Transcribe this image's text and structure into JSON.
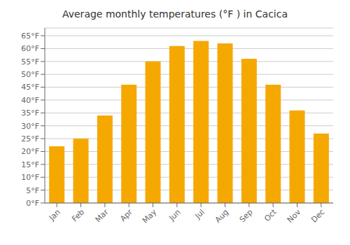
{
  "chart_data": {
    "type": "bar",
    "title": "Average monthly temperatures (°F ) in Cacica",
    "categories": [
      "Jan",
      "Feb",
      "Mar",
      "Apr",
      "May",
      "Jun",
      "Jul",
      "Aug",
      "Sep",
      "Oct",
      "Nov",
      "Dec"
    ],
    "values": [
      22,
      25,
      34,
      46,
      55,
      61,
      63,
      62,
      56,
      46,
      36,
      27
    ],
    "color": "#F5A800",
    "ylim": [
      0,
      68
    ],
    "yticks": [
      {
        "value": 0,
        "label": "0°F"
      },
      {
        "value": 5,
        "label": "5°F"
      },
      {
        "value": 10,
        "label": "10°F"
      },
      {
        "value": 15,
        "label": "15°F"
      },
      {
        "value": 20,
        "label": "20°F"
      },
      {
        "value": 25,
        "label": "25°F"
      },
      {
        "value": 30,
        "label": "30°F"
      },
      {
        "value": 35,
        "label": "35°F"
      },
      {
        "value": 40,
        "label": "40°F"
      },
      {
        "value": 45,
        "label": "45°F"
      },
      {
        "value": 50,
        "label": "50°F"
      },
      {
        "value": 55,
        "label": "55°F"
      },
      {
        "value": 60,
        "label": "60°F"
      },
      {
        "value": 65,
        "label": "65°F"
      }
    ],
    "grid": true
  }
}
